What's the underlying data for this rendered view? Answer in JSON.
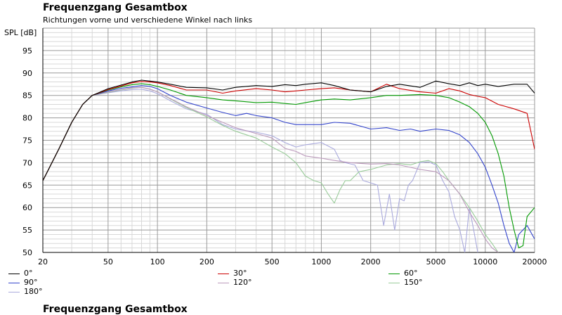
{
  "title": "Frequenzgang Gesamtbox",
  "subtitle": "Richtungen vorne und verschiedene Winkel nach links",
  "footer_title": "Frequenzgang Gesamtbox",
  "chart_data": {
    "type": "line",
    "title": "Frequenzgang Gesamtbox",
    "subtitle": "Richtungen vorne und verschiedene Winkel nach links",
    "ylabel": "SPL [dB]",
    "xscale": "log",
    "xlim": [
      20,
      20000
    ],
    "ylim": [
      50,
      100
    ],
    "x_ticks": [
      20,
      50,
      100,
      200,
      500,
      1000,
      2000,
      5000,
      10000,
      20000
    ],
    "x_tick_labels": [
      "20",
      "50",
      "100",
      "200",
      "500",
      "1000",
      "2000",
      "5000",
      "10000",
      "20000"
    ],
    "y_ticks": [
      50,
      55,
      60,
      65,
      70,
      75,
      80,
      85,
      90,
      95
    ],
    "y_tick_labels": [
      "50",
      "55",
      "60",
      "65",
      "70",
      "75",
      "80",
      "85",
      "90",
      "95"
    ],
    "grid": true,
    "legend_position": "bottom",
    "series": [
      {
        "name": "0°",
        "color": "#000000",
        "x": [
          20,
          25,
          30,
          35,
          40,
          50,
          60,
          70,
          80,
          90,
          100,
          120,
          150,
          200,
          250,
          300,
          400,
          500,
          600,
          700,
          800,
          1000,
          1200,
          1500,
          2000,
          2500,
          3000,
          4000,
          5000,
          6000,
          7000,
          8000,
          9000,
          10000,
          12000,
          15000,
          18000,
          20000
        ],
        "y": [
          66,
          73,
          79,
          83,
          85,
          86.5,
          87.3,
          88,
          88.4,
          88.2,
          88,
          87.5,
          86.8,
          86.7,
          86.2,
          86.8,
          87.2,
          87,
          87.4,
          87.2,
          87.5,
          87.8,
          87.2,
          86.2,
          85.8,
          87,
          87.5,
          86.8,
          88.2,
          87.6,
          87.2,
          87.8,
          87.2,
          87.5,
          87,
          87.5,
          87.5,
          85.5
        ]
      },
      {
        "name": "30°",
        "color": "#cc0000",
        "x": [
          20,
          25,
          30,
          35,
          40,
          50,
          60,
          70,
          80,
          90,
          100,
          120,
          150,
          200,
          250,
          300,
          400,
          500,
          600,
          700,
          800,
          1000,
          1200,
          1500,
          2000,
          2500,
          3000,
          4000,
          5000,
          6000,
          7000,
          8000,
          9000,
          10000,
          12000,
          15000,
          18000,
          20000
        ],
        "y": [
          66,
          73,
          79,
          83,
          85,
          86.3,
          87.1,
          87.8,
          88.1,
          88,
          87.8,
          87.2,
          86.2,
          86.2,
          85.5,
          86,
          86.5,
          86.2,
          85.8,
          86,
          86.2,
          86.5,
          86.7,
          86.2,
          85.8,
          87.5,
          86.5,
          85.8,
          85.5,
          86.5,
          86,
          85.2,
          84.8,
          84.5,
          83,
          82,
          81,
          73
        ]
      },
      {
        "name": "60°",
        "color": "#009900",
        "x": [
          20,
          25,
          30,
          35,
          40,
          50,
          60,
          70,
          80,
          90,
          100,
          120,
          150,
          200,
          250,
          300,
          400,
          500,
          600,
          700,
          800,
          1000,
          1200,
          1500,
          2000,
          2500,
          3000,
          4000,
          5000,
          6000,
          7000,
          8000,
          9000,
          10000,
          11000,
          12000,
          13000,
          14000,
          15000,
          16000,
          17000,
          18000,
          20000
        ],
        "y": [
          66,
          73,
          79,
          83,
          85,
          86.2,
          86.9,
          87.4,
          87.6,
          87.4,
          87,
          86.2,
          85,
          84.5,
          84,
          83.8,
          83.4,
          83.5,
          83.2,
          83,
          83.4,
          84,
          84.2,
          84,
          84.5,
          85,
          85,
          85.2,
          85,
          84.5,
          83.5,
          82.5,
          81,
          79,
          76,
          72,
          67,
          60,
          55,
          51,
          51.5,
          58,
          60
        ]
      },
      {
        "name": "90°",
        "color": "#3344cc",
        "x": [
          20,
          25,
          30,
          35,
          40,
          50,
          60,
          70,
          80,
          90,
          100,
          120,
          150,
          200,
          250,
          300,
          350,
          400,
          500,
          600,
          700,
          800,
          1000,
          1200,
          1500,
          2000,
          2500,
          3000,
          3500,
          4000,
          5000,
          6000,
          7000,
          8000,
          9000,
          10000,
          11000,
          12000,
          13000,
          14000,
          15000,
          16000,
          18000,
          20000
        ],
        "y": [
          66,
          73,
          79,
          83,
          85,
          86,
          86.6,
          86.9,
          87.2,
          87,
          86.5,
          85,
          83.5,
          82.2,
          81.2,
          80.5,
          81,
          80.5,
          80,
          79,
          78.5,
          78.5,
          78.5,
          79,
          78.8,
          77.5,
          77.8,
          77.2,
          77.5,
          77,
          77.5,
          77.2,
          76.2,
          74.5,
          72,
          69,
          65,
          61,
          56,
          52,
          50,
          54,
          56,
          53
        ]
      },
      {
        "name": "120°",
        "color": "#bb99bb",
        "x": [
          20,
          25,
          30,
          35,
          40,
          50,
          60,
          70,
          80,
          90,
          100,
          120,
          150,
          200,
          250,
          300,
          400,
          500,
          600,
          700,
          800,
          1000,
          1200,
          1500,
          2000,
          2500,
          3000,
          4000,
          5000,
          6000,
          7000,
          8000,
          9000,
          10000,
          11000,
          12000
        ],
        "y": [
          66,
          73,
          79,
          83,
          85,
          85.8,
          86.3,
          86.7,
          86.8,
          86.4,
          85.8,
          84.3,
          82.5,
          80.5,
          79,
          77.8,
          76.5,
          75.5,
          73.2,
          72.5,
          71.5,
          71,
          70.5,
          70,
          69.7,
          69.8,
          69.5,
          68.5,
          68,
          66,
          63,
          59,
          56,
          53,
          51,
          50
        ]
      },
      {
        "name": "150°",
        "color": "#99cc99",
        "x": [
          20,
          25,
          30,
          35,
          40,
          50,
          60,
          70,
          80,
          90,
          100,
          120,
          150,
          200,
          250,
          300,
          400,
          500,
          600,
          700,
          800,
          900,
          1000,
          1100,
          1200,
          1300,
          1400,
          1500,
          1700,
          2000,
          2500,
          3000,
          3500,
          4000,
          4500,
          5000,
          5500,
          6000,
          7000,
          8000,
          9000,
          10000,
          11000,
          12000
        ],
        "y": [
          66,
          73,
          79,
          83,
          85,
          85.7,
          86.2,
          86.6,
          86.8,
          86.4,
          85.8,
          84.2,
          82.3,
          80.2,
          78.3,
          77,
          75.5,
          73.5,
          72,
          70,
          67,
          66,
          65.5,
          63,
          61,
          64,
          66,
          66,
          68,
          68.5,
          69.5,
          69.8,
          69.5,
          70.2,
          70.5,
          69.8,
          68,
          66,
          63,
          60,
          57,
          54,
          52,
          50
        ]
      },
      {
        "name": "180°",
        "color": "#aaaadd",
        "x": [
          20,
          25,
          30,
          35,
          40,
          50,
          60,
          70,
          80,
          90,
          100,
          120,
          150,
          200,
          250,
          300,
          400,
          500,
          600,
          700,
          800,
          1000,
          1200,
          1300,
          1400,
          1600,
          1800,
          2000,
          2200,
          2400,
          2600,
          2800,
          3000,
          3200,
          3400,
          3600,
          4000,
          4500,
          5000,
          5500,
          6000,
          6500,
          7000,
          7500,
          8000,
          8500,
          9000
        ],
        "y": [
          66,
          73,
          79,
          83,
          85,
          85.6,
          86,
          86.3,
          86.4,
          86,
          85.4,
          83.8,
          82,
          80.8,
          78.5,
          77.5,
          76.8,
          76,
          74.5,
          73.5,
          74,
          74.5,
          73,
          70.5,
          70,
          69.5,
          66,
          65.5,
          65,
          56,
          63,
          55,
          62,
          61.5,
          65,
          66,
          70,
          70.2,
          69.5,
          66,
          63.5,
          58,
          55,
          50,
          60,
          55,
          50
        ]
      }
    ]
  }
}
